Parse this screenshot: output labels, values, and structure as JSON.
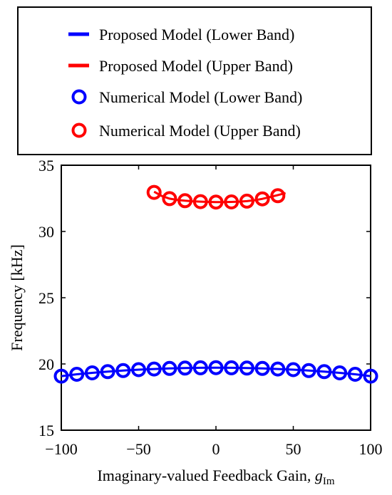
{
  "chart_data": {
    "type": "line",
    "title": "",
    "xlabel": "Imaginary-valued Feedback Gain, ",
    "xlabel_var": "g",
    "xlabel_sub": "Im",
    "ylabel": "Frequency [kHz]",
    "xlim": [
      -100,
      100
    ],
    "ylim": [
      15,
      35
    ],
    "xticks": [
      -100,
      -50,
      0,
      50,
      100
    ],
    "xtick_labels": [
      "−100",
      "−50",
      "0",
      "50",
      "100"
    ],
    "yticks": [
      15,
      20,
      25,
      30,
      35
    ],
    "ytick_labels": [
      "15",
      "20",
      "25",
      "30",
      "35"
    ],
    "grid": false,
    "legend_position": "above plot",
    "series": [
      {
        "name": "Proposed Model (Lower Band)",
        "kind": "line",
        "color": "#0000ff",
        "x": [
          -100,
          -90,
          -80,
          -70,
          -60,
          -50,
          -40,
          -30,
          -20,
          -10,
          0,
          10,
          20,
          30,
          40,
          50,
          60,
          70,
          80,
          90,
          100
        ],
        "y": [
          19.08,
          19.22,
          19.33,
          19.42,
          19.5,
          19.57,
          19.62,
          19.66,
          19.69,
          19.71,
          19.72,
          19.71,
          19.69,
          19.66,
          19.62,
          19.57,
          19.5,
          19.42,
          19.33,
          19.22,
          19.08
        ]
      },
      {
        "name": "Proposed Model (Upper Band)",
        "kind": "line",
        "color": "#ff0000",
        "x": [
          -40,
          -35,
          -30,
          -25,
          -20,
          -15,
          -10,
          -5,
          0,
          5,
          10,
          15,
          20,
          25,
          30,
          35,
          40,
          45
        ],
        "y": [
          33.0,
          32.68,
          32.48,
          32.38,
          32.32,
          32.28,
          32.25,
          32.23,
          32.22,
          32.22,
          32.23,
          32.25,
          32.29,
          32.36,
          32.46,
          32.6,
          32.75,
          32.9
        ]
      },
      {
        "name": "Numerical Model (Lower Band)",
        "kind": "marker",
        "color": "#0000ff",
        "x": [
          -100,
          -90,
          -80,
          -70,
          -60,
          -50,
          -40,
          -30,
          -20,
          -10,
          0,
          10,
          20,
          30,
          40,
          50,
          60,
          70,
          80,
          90,
          100
        ],
        "y": [
          19.08,
          19.22,
          19.33,
          19.42,
          19.5,
          19.57,
          19.62,
          19.66,
          19.69,
          19.71,
          19.72,
          19.71,
          19.69,
          19.66,
          19.62,
          19.57,
          19.5,
          19.42,
          19.33,
          19.22,
          19.08
        ]
      },
      {
        "name": "Numerical Model (Upper Band)",
        "kind": "marker",
        "color": "#ff0000",
        "x": [
          -40,
          -30,
          -20,
          -10,
          0,
          10,
          20,
          30,
          40
        ],
        "y": [
          32.95,
          32.48,
          32.32,
          32.25,
          32.22,
          32.23,
          32.29,
          32.46,
          32.7
        ]
      }
    ]
  }
}
